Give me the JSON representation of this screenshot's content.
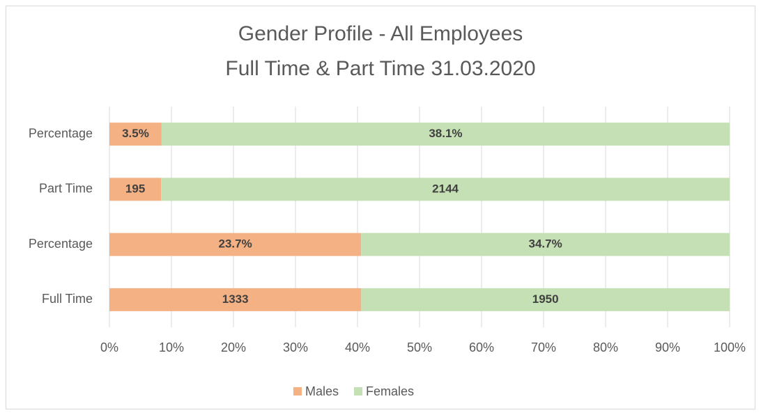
{
  "chart_data": {
    "type": "bar",
    "orientation": "horizontal",
    "stacked": "percent",
    "title": "Gender Profile - All Employees",
    "subtitle": "Full Time & Part Time 31.03.2020",
    "categories": [
      "Full Time",
      "Percentage",
      "Part Time",
      "Percentage"
    ],
    "series": [
      {
        "name": "Males",
        "color": "#f4b183",
        "values": [
          1333,
          23.7,
          195,
          3.5
        ],
        "value_labels": [
          "1333",
          "23.7%",
          "195",
          "3.5%"
        ]
      },
      {
        "name": "Females",
        "color": "#c5e0b4",
        "values": [
          1950,
          34.7,
          2144,
          38.1
        ],
        "value_labels": [
          "1950",
          "34.7%",
          "2144",
          "38.1%"
        ]
      }
    ],
    "xlim": [
      0,
      100
    ],
    "xticks": [
      {
        "value": 0,
        "label": "0%"
      },
      {
        "value": 10,
        "label": "10%"
      },
      {
        "value": 20,
        "label": "20%"
      },
      {
        "value": 30,
        "label": "30%"
      },
      {
        "value": 40,
        "label": "40%"
      },
      {
        "value": 50,
        "label": "50%"
      },
      {
        "value": 60,
        "label": "60%"
      },
      {
        "value": 70,
        "label": "70%"
      },
      {
        "value": 80,
        "label": "80%"
      },
      {
        "value": 90,
        "label": "90%"
      },
      {
        "value": 100,
        "label": "100%"
      }
    ],
    "grid": true,
    "legend": "bottom"
  }
}
